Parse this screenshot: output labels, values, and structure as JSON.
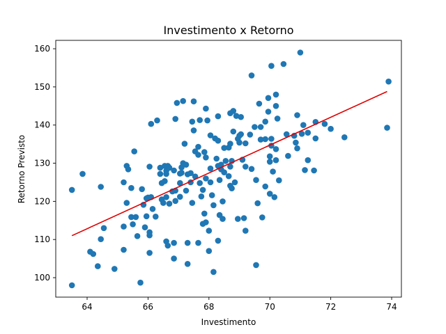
{
  "chart_data": {
    "type": "scatter",
    "title": "Investimento x Retorno",
    "xlabel": "Investimento",
    "ylabel": "Retorno Previsto",
    "xlim": [
      62.97,
      74.32
    ],
    "ylim": [
      94.9,
      162.2
    ],
    "xticks": [
      64,
      66,
      68,
      70,
      72,
      74
    ],
    "yticks": [
      100,
      110,
      120,
      130,
      140,
      150,
      160
    ],
    "grid": false,
    "colors": {
      "points": "#1f77b4",
      "line": "#e00000"
    },
    "trend_line": {
      "x": [
        63.5,
        73.85
      ],
      "y": [
        111.0,
        148.8
      ]
    },
    "points": [
      [
        63.5,
        123.0
      ],
      [
        63.5,
        98.0
      ],
      [
        63.85,
        127.2
      ],
      [
        64.1,
        106.8
      ],
      [
        64.2,
        106.2
      ],
      [
        64.35,
        103.0
      ],
      [
        64.45,
        123.8
      ],
      [
        64.45,
        110.1
      ],
      [
        64.55,
        113.0
      ],
      [
        64.9,
        102.3
      ],
      [
        65.2,
        125.0
      ],
      [
        65.2,
        113.4
      ],
      [
        65.2,
        107.3
      ],
      [
        65.3,
        129.3
      ],
      [
        65.3,
        119.6
      ],
      [
        65.35,
        128.4
      ],
      [
        65.45,
        123.5
      ],
      [
        65.45,
        115.9
      ],
      [
        65.5,
        114.0
      ],
      [
        65.55,
        133.1
      ],
      [
        65.6,
        115.9
      ],
      [
        65.65,
        110.9
      ],
      [
        65.75,
        98.7
      ],
      [
        65.8,
        123.2
      ],
      [
        65.85,
        119.1
      ],
      [
        65.9,
        113.2
      ],
      [
        65.95,
        120.8
      ],
      [
        65.95,
        116.1
      ],
      [
        66.0,
        121.0
      ],
      [
        66.05,
        129.1
      ],
      [
        66.05,
        111.9
      ],
      [
        66.05,
        111.1
      ],
      [
        66.05,
        106.5
      ],
      [
        66.1,
        140.3
      ],
      [
        66.1,
        121.1
      ],
      [
        66.15,
        118.0
      ],
      [
        66.25,
        116.0
      ],
      [
        66.3,
        141.2
      ],
      [
        66.4,
        128.8
      ],
      [
        66.4,
        127.2
      ],
      [
        66.45,
        124.8
      ],
      [
        66.45,
        120.5
      ],
      [
        66.5,
        119.6
      ],
      [
        66.55,
        129.3
      ],
      [
        66.55,
        125.3
      ],
      [
        66.6,
        128.0
      ],
      [
        66.6,
        127.2
      ],
      [
        66.6,
        121.1
      ],
      [
        66.6,
        109.5
      ],
      [
        66.65,
        129.3
      ],
      [
        66.65,
        108.4
      ],
      [
        66.7,
        119.4
      ],
      [
        66.7,
        128.8
      ],
      [
        66.8,
        122.6
      ],
      [
        66.85,
        128.1
      ],
      [
        66.85,
        109.1
      ],
      [
        66.85,
        105.0
      ],
      [
        66.9,
        141.6
      ],
      [
        66.9,
        122.8
      ],
      [
        66.9,
        120.1
      ],
      [
        66.95,
        145.8
      ],
      [
        67.05,
        127.3
      ],
      [
        67.05,
        124.8
      ],
      [
        67.05,
        121.2
      ],
      [
        67.1,
        128.9
      ],
      [
        67.1,
        127.5
      ],
      [
        67.15,
        146.3
      ],
      [
        67.15,
        130.0
      ],
      [
        67.2,
        135.1
      ],
      [
        67.25,
        129.6
      ],
      [
        67.25,
        122.8
      ],
      [
        67.3,
        127.1
      ],
      [
        67.3,
        109.1
      ],
      [
        67.3,
        103.6
      ],
      [
        67.4,
        127.4
      ],
      [
        67.4,
        125.0
      ],
      [
        67.45,
        140.9
      ],
      [
        67.45,
        119.6
      ],
      [
        67.5,
        146.2
      ],
      [
        67.5,
        138.6
      ],
      [
        67.55,
        133.1
      ],
      [
        67.55,
        126.5
      ],
      [
        67.65,
        134.3
      ],
      [
        67.65,
        132.2
      ],
      [
        67.65,
        109.1
      ],
      [
        67.7,
        141.3
      ],
      [
        67.7,
        124.8
      ],
      [
        67.75,
        121.3
      ],
      [
        67.8,
        123.0
      ],
      [
        67.8,
        114.1
      ],
      [
        67.85,
        132.9
      ],
      [
        67.85,
        116.8
      ],
      [
        67.9,
        144.3
      ],
      [
        67.9,
        131.5
      ],
      [
        67.9,
        126.0
      ],
      [
        67.9,
        114.5
      ],
      [
        67.95,
        141.2
      ],
      [
        68.0,
        112.3
      ],
      [
        68.0,
        107.0
      ],
      [
        68.05,
        137.3
      ],
      [
        68.05,
        128.6
      ],
      [
        68.05,
        125.0
      ],
      [
        68.1,
        121.6
      ],
      [
        68.15,
        101.5
      ],
      [
        68.15,
        119.0
      ],
      [
        68.2,
        136.5
      ],
      [
        68.25,
        131.2
      ],
      [
        68.3,
        142.3
      ],
      [
        68.3,
        135.9
      ],
      [
        68.3,
        129.3
      ],
      [
        68.3,
        109.7
      ],
      [
        68.35,
        116.4
      ],
      [
        68.35,
        125.6
      ],
      [
        68.4,
        129.6
      ],
      [
        68.4,
        128.4
      ],
      [
        68.45,
        120.0
      ],
      [
        68.45,
        115.4
      ],
      [
        68.5,
        134.0
      ],
      [
        68.5,
        127.6
      ],
      [
        68.55,
        130.6
      ],
      [
        68.65,
        134.1
      ],
      [
        68.65,
        126.6
      ],
      [
        68.7,
        143.1
      ],
      [
        68.7,
        135.1
      ],
      [
        68.7,
        129.1
      ],
      [
        68.7,
        124.1
      ],
      [
        68.75,
        130.6
      ],
      [
        68.75,
        123.4
      ],
      [
        68.8,
        143.7
      ],
      [
        68.8,
        138.3
      ],
      [
        68.85,
        125.0
      ],
      [
        68.9,
        142.4
      ],
      [
        68.95,
        136.4
      ],
      [
        68.95,
        115.4
      ],
      [
        69.0,
        135.4
      ],
      [
        69.0,
        137.2
      ],
      [
        69.05,
        142.1
      ],
      [
        69.05,
        137.6
      ],
      [
        69.1,
        130.9
      ],
      [
        69.15,
        115.6
      ],
      [
        69.2,
        135.2
      ],
      [
        69.2,
        129.1
      ],
      [
        69.2,
        112.3
      ],
      [
        69.35,
        137.5
      ],
      [
        69.4,
        128.5
      ],
      [
        69.4,
        153.0
      ],
      [
        69.5,
        139.5
      ],
      [
        69.55,
        125.6
      ],
      [
        69.55,
        103.3
      ],
      [
        69.6,
        119.5
      ],
      [
        69.65,
        145.6
      ],
      [
        69.7,
        139.5
      ],
      [
        69.7,
        136.2
      ],
      [
        69.75,
        115.8
      ],
      [
        69.85,
        140.9
      ],
      [
        69.85,
        136.3
      ],
      [
        69.85,
        123.9
      ],
      [
        69.95,
        147.1
      ],
      [
        69.95,
        143.5
      ],
      [
        70.0,
        131.8
      ],
      [
        70.0,
        130.4
      ],
      [
        70.0,
        122.0
      ],
      [
        70.05,
        155.5
      ],
      [
        70.05,
        136.4
      ],
      [
        70.05,
        134.6
      ],
      [
        70.1,
        127.8
      ],
      [
        70.15,
        121.1
      ],
      [
        70.2,
        148.0
      ],
      [
        70.2,
        145.0
      ],
      [
        70.2,
        133.7
      ],
      [
        70.2,
        130.8
      ],
      [
        70.25,
        141.7
      ],
      [
        70.3,
        125.5
      ],
      [
        70.45,
        156.0
      ],
      [
        70.55,
        137.6
      ],
      [
        70.6,
        131.9
      ],
      [
        70.8,
        137.2
      ],
      [
        70.85,
        135.4
      ],
      [
        70.9,
        142.6
      ],
      [
        70.9,
        133.9
      ],
      [
        71.0,
        159.0
      ],
      [
        71.05,
        137.7
      ],
      [
        71.1,
        140.0
      ],
      [
        71.15,
        128.2
      ],
      [
        71.25,
        130.8
      ],
      [
        71.25,
        138.0
      ],
      [
        71.45,
        128.1
      ],
      [
        71.5,
        140.8
      ],
      [
        71.5,
        136.5
      ],
      [
        71.8,
        140.3
      ],
      [
        72.0,
        139.0
      ],
      [
        72.45,
        136.8
      ],
      [
        73.85,
        139.3
      ],
      [
        73.9,
        151.4
      ]
    ]
  }
}
